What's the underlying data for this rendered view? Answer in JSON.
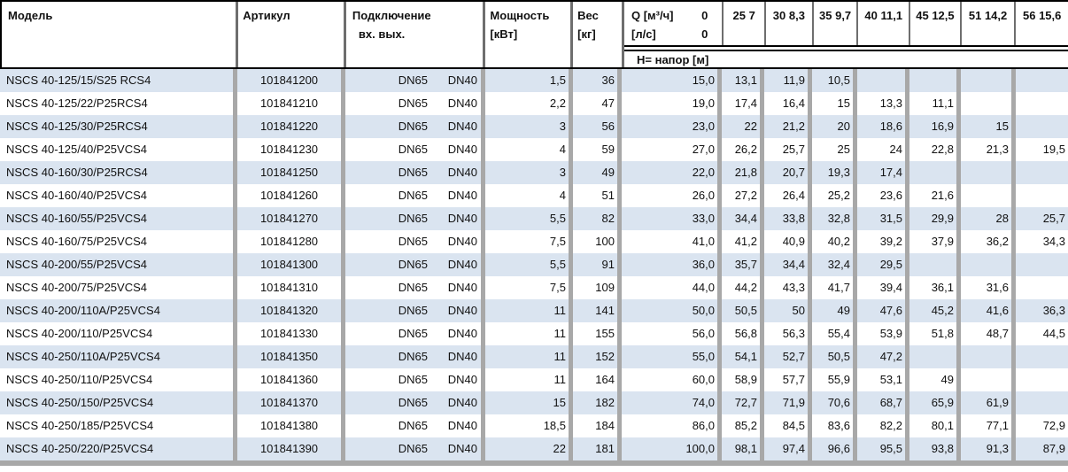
{
  "colors": {
    "row_alt": "#dae4f0",
    "separator": "#a8a8a8",
    "header_line": "#000000"
  },
  "table": {
    "columns": {
      "model": "Модель",
      "article": "Артикул",
      "connection": "Подключение",
      "connection_in": "вх.",
      "connection_out": "вых.",
      "power": [
        "Мощность",
        "[кВт]"
      ],
      "weight": [
        "Вес",
        "[кг]"
      ],
      "flow_unit_m3h": "Q [м³/ч]",
      "flow_zero_m3h": "0",
      "flow_unit_ls": "[л/с]",
      "flow_zero_ls": "0",
      "head_row_label": "Н= напор [м]",
      "flow_columns": [
        {
          "m3h": "25",
          "ls": "7"
        },
        {
          "m3h": "30",
          "ls": "8,3"
        },
        {
          "m3h": "35",
          "ls": "9,7"
        },
        {
          "m3h": "40",
          "ls": "11,1"
        },
        {
          "m3h": "45",
          "ls": "12,5"
        },
        {
          "m3h": "51",
          "ls": "14,2"
        },
        {
          "m3h": "56",
          "ls": "15,6"
        }
      ]
    },
    "rows": [
      {
        "model": "NSCS 40-125/15/S25 RCS4",
        "article": "101841200",
        "inlet": "DN65",
        "outlet": "DN40",
        "power": "1,5",
        "weight": "36",
        "head": [
          "15,0",
          "13,1",
          "11,9",
          "10,5",
          "",
          "",
          "",
          ""
        ]
      },
      {
        "model": "NSCS 40-125/22/P25RCS4",
        "article": "101841210",
        "inlet": "DN65",
        "outlet": "DN40",
        "power": "2,2",
        "weight": "47",
        "head": [
          "19,0",
          "17,4",
          "16,4",
          "15",
          "13,3",
          "11,1",
          "",
          ""
        ]
      },
      {
        "model": "NSCS 40-125/30/P25RCS4",
        "article": "101841220",
        "inlet": "DN65",
        "outlet": "DN40",
        "power": "3",
        "weight": "56",
        "head": [
          "23,0",
          "22",
          "21,2",
          "20",
          "18,6",
          "16,9",
          "15",
          ""
        ]
      },
      {
        "model": "NSCS 40-125/40/P25VCS4",
        "article": "101841230",
        "inlet": "DN65",
        "outlet": "DN40",
        "power": "4",
        "weight": "59",
        "head": [
          "27,0",
          "26,2",
          "25,7",
          "25",
          "24",
          "22,8",
          "21,3",
          "19,5"
        ]
      },
      {
        "model": "NSCS 40-160/30/P25RCS4",
        "article": "101841250",
        "inlet": "DN65",
        "outlet": "DN40",
        "power": "3",
        "weight": "49",
        "head": [
          "22,0",
          "21,8",
          "20,7",
          "19,3",
          "17,4",
          "",
          "",
          ""
        ]
      },
      {
        "model": "NSCS 40-160/40/P25VCS4",
        "article": "101841260",
        "inlet": "DN65",
        "outlet": "DN40",
        "power": "4",
        "weight": "51",
        "head": [
          "26,0",
          "27,2",
          "26,4",
          "25,2",
          "23,6",
          "21,6",
          "",
          ""
        ]
      },
      {
        "model": "NSCS 40-160/55/P25VCS4",
        "article": "101841270",
        "inlet": "DN65",
        "outlet": "DN40",
        "power": "5,5",
        "weight": "82",
        "head": [
          "33,0",
          "34,4",
          "33,8",
          "32,8",
          "31,5",
          "29,9",
          "28",
          "25,7"
        ]
      },
      {
        "model": "NSCS 40-160/75/P25VCS4",
        "article": "101841280",
        "inlet": "DN65",
        "outlet": "DN40",
        "power": "7,5",
        "weight": "100",
        "head": [
          "41,0",
          "41,2",
          "40,9",
          "40,2",
          "39,2",
          "37,9",
          "36,2",
          "34,3"
        ]
      },
      {
        "model": "NSCS 40-200/55/P25VCS4",
        "article": "101841300",
        "inlet": "DN65",
        "outlet": "DN40",
        "power": "5,5",
        "weight": "91",
        "head": [
          "36,0",
          "35,7",
          "34,4",
          "32,4",
          "29,5",
          "",
          "",
          ""
        ]
      },
      {
        "model": "NSCS 40-200/75/P25VCS4",
        "article": "101841310",
        "inlet": "DN65",
        "outlet": "DN40",
        "power": "7,5",
        "weight": "109",
        "head": [
          "44,0",
          "44,2",
          "43,3",
          "41,7",
          "39,4",
          "36,1",
          "31,6",
          ""
        ]
      },
      {
        "model": "NSCS 40-200/110A/P25VCS4",
        "article": "101841320",
        "inlet": "DN65",
        "outlet": "DN40",
        "power": "11",
        "weight": "141",
        "head": [
          "50,0",
          "50,5",
          "50",
          "49",
          "47,6",
          "45,2",
          "41,6",
          "36,3"
        ]
      },
      {
        "model": "NSCS 40-200/110/P25VCS4",
        "article": "101841330",
        "inlet": "DN65",
        "outlet": "DN40",
        "power": "11",
        "weight": "155",
        "head": [
          "56,0",
          "56,8",
          "56,3",
          "55,4",
          "53,9",
          "51,8",
          "48,7",
          "44,5"
        ]
      },
      {
        "model": "NSCS 40-250/110A/P25VCS4",
        "article": "101841350",
        "inlet": "DN65",
        "outlet": "DN40",
        "power": "11",
        "weight": "152",
        "head": [
          "55,0",
          "54,1",
          "52,7",
          "50,5",
          "47,2",
          "",
          "",
          ""
        ]
      },
      {
        "model": "NSCS 40-250/110/P25VCS4",
        "article": "101841360",
        "inlet": "DN65",
        "outlet": "DN40",
        "power": "11",
        "weight": "164",
        "head": [
          "60,0",
          "58,9",
          "57,7",
          "55,9",
          "53,1",
          "49",
          "",
          ""
        ]
      },
      {
        "model": "NSCS 40-250/150/P25VCS4",
        "article": "101841370",
        "inlet": "DN65",
        "outlet": "DN40",
        "power": "15",
        "weight": "182",
        "head": [
          "74,0",
          "72,7",
          "71,9",
          "70,6",
          "68,7",
          "65,9",
          "61,9",
          ""
        ]
      },
      {
        "model": "NSCS 40-250/185/P25VCS4",
        "article": "101841380",
        "inlet": "DN65",
        "outlet": "DN40",
        "power": "18,5",
        "weight": "184",
        "head": [
          "86,0",
          "85,2",
          "84,5",
          "83,6",
          "82,2",
          "80,1",
          "77,1",
          "72,9"
        ]
      },
      {
        "model": "NSCS 40-250/220/P25VCS4",
        "article": "101841390",
        "inlet": "DN65",
        "outlet": "DN40",
        "power": "22",
        "weight": "181",
        "head": [
          "100,0",
          "98,1",
          "97,4",
          "96,6",
          "95,5",
          "93,8",
          "91,3",
          "87,9"
        ]
      }
    ]
  }
}
